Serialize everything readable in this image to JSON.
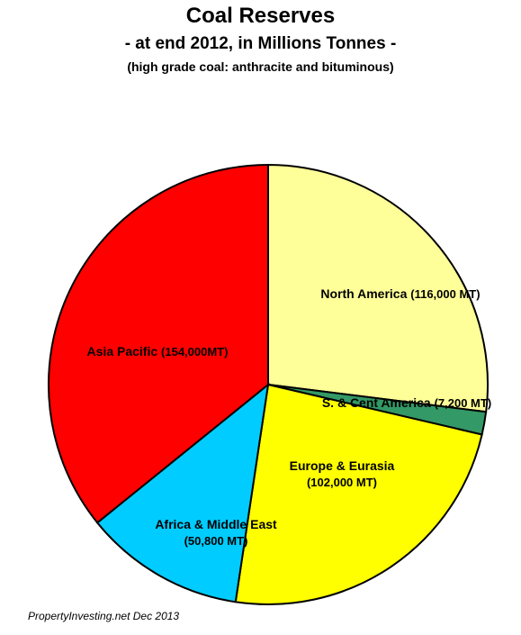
{
  "chart_data": {
    "type": "pie",
    "title": "Coal Reserves",
    "subtitle": "- at end 2012, in Millions  Tonnes -",
    "note": "(high grade coal: anthracite and bituminous)",
    "footer": "PropertyInvesting.net  Dec 2013",
    "categories": [
      "North America",
      "S. & Cent America",
      "Europe & Eurasia",
      "Africa & Middle East",
      "Asia Pacific"
    ],
    "values": [
      116000,
      7200,
      102000,
      50800,
      154000
    ],
    "value_labels": [
      "(116,000  MT)",
      "(7,200 MT)",
      "(102,000  MT)",
      "(50,800  MT)",
      "(154,000MT)"
    ],
    "colors": [
      "#ffff99",
      "#339966",
      "#ffff00",
      "#00ccff",
      "#ff0000"
    ]
  }
}
